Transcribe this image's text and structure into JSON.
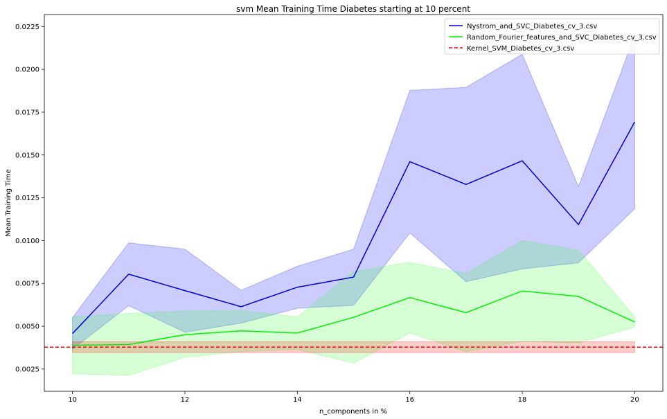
{
  "chart_data": {
    "type": "line",
    "title": "svm Mean Training Time Diabetes starting at 10 percent",
    "xlabel": "n_components in %",
    "ylabel": "Mean Training Time",
    "xlim": [
      9.5,
      20.5
    ],
    "ylim": [
      0.0012,
      0.0232
    ],
    "xticks": [
      10,
      12,
      14,
      16,
      18,
      20
    ],
    "xtick_labels": [
      "10",
      "12",
      "14",
      "16",
      "18",
      "20"
    ],
    "yticks": [
      0.0025,
      0.005,
      0.0075,
      0.01,
      0.0125,
      0.015,
      0.0175,
      0.02,
      0.0225
    ],
    "ytick_labels": [
      "0.0025",
      "0.0050",
      "0.0075",
      "0.0100",
      "0.0125",
      "0.0150",
      "0.0175",
      "0.0200",
      "0.0225"
    ],
    "grid": false,
    "legend_position": "top-right",
    "x": [
      10,
      11,
      12,
      13,
      14,
      15,
      16,
      17,
      18,
      19,
      20
    ],
    "series": [
      {
        "name": "Nystrom_and_SVC_Diabetes_cv_3.csv",
        "color": "#0000cc",
        "band_color": "#0000ff",
        "style": "solid",
        "values": [
          0.00457,
          0.00804,
          0.00708,
          0.00614,
          0.00728,
          0.00787,
          0.01461,
          0.01328,
          0.01466,
          0.01094,
          0.01693
        ],
        "upper": [
          0.0055,
          0.00987,
          0.0095,
          0.0071,
          0.0085,
          0.0095,
          0.01877,
          0.01895,
          0.02088,
          0.01315,
          0.022
        ],
        "lower": [
          0.00365,
          0.0062,
          0.00465,
          0.00518,
          0.00605,
          0.00622,
          0.01045,
          0.0076,
          0.00834,
          0.0087,
          0.01186
        ]
      },
      {
        "name": "Random_Fourier_features_and_SVC_Diabetes_cv_3.csv",
        "color": "#00ee00",
        "band_color": "#33ff33",
        "style": "solid",
        "values": [
          0.00389,
          0.00393,
          0.00451,
          0.00473,
          0.0046,
          0.00552,
          0.00667,
          0.00579,
          0.00706,
          0.00674,
          0.00525
        ],
        "upper": [
          0.00555,
          0.00575,
          0.00588,
          0.00592,
          0.00555,
          0.0082,
          0.00873,
          0.00808,
          0.00999,
          0.00944,
          0.00555
        ],
        "lower": [
          0.00222,
          0.00213,
          0.00318,
          0.00352,
          0.00364,
          0.00284,
          0.00461,
          0.0035,
          0.00412,
          0.00402,
          0.00495
        ]
      },
      {
        "name": "Kernel_SVM_Diabetes_cv_3.csv",
        "color": "#ee0000",
        "band_color": "#ff0000",
        "style": "dashed",
        "value": 0.00378,
        "band_upper": 0.0041,
        "band_lower": 0.00346
      }
    ]
  }
}
